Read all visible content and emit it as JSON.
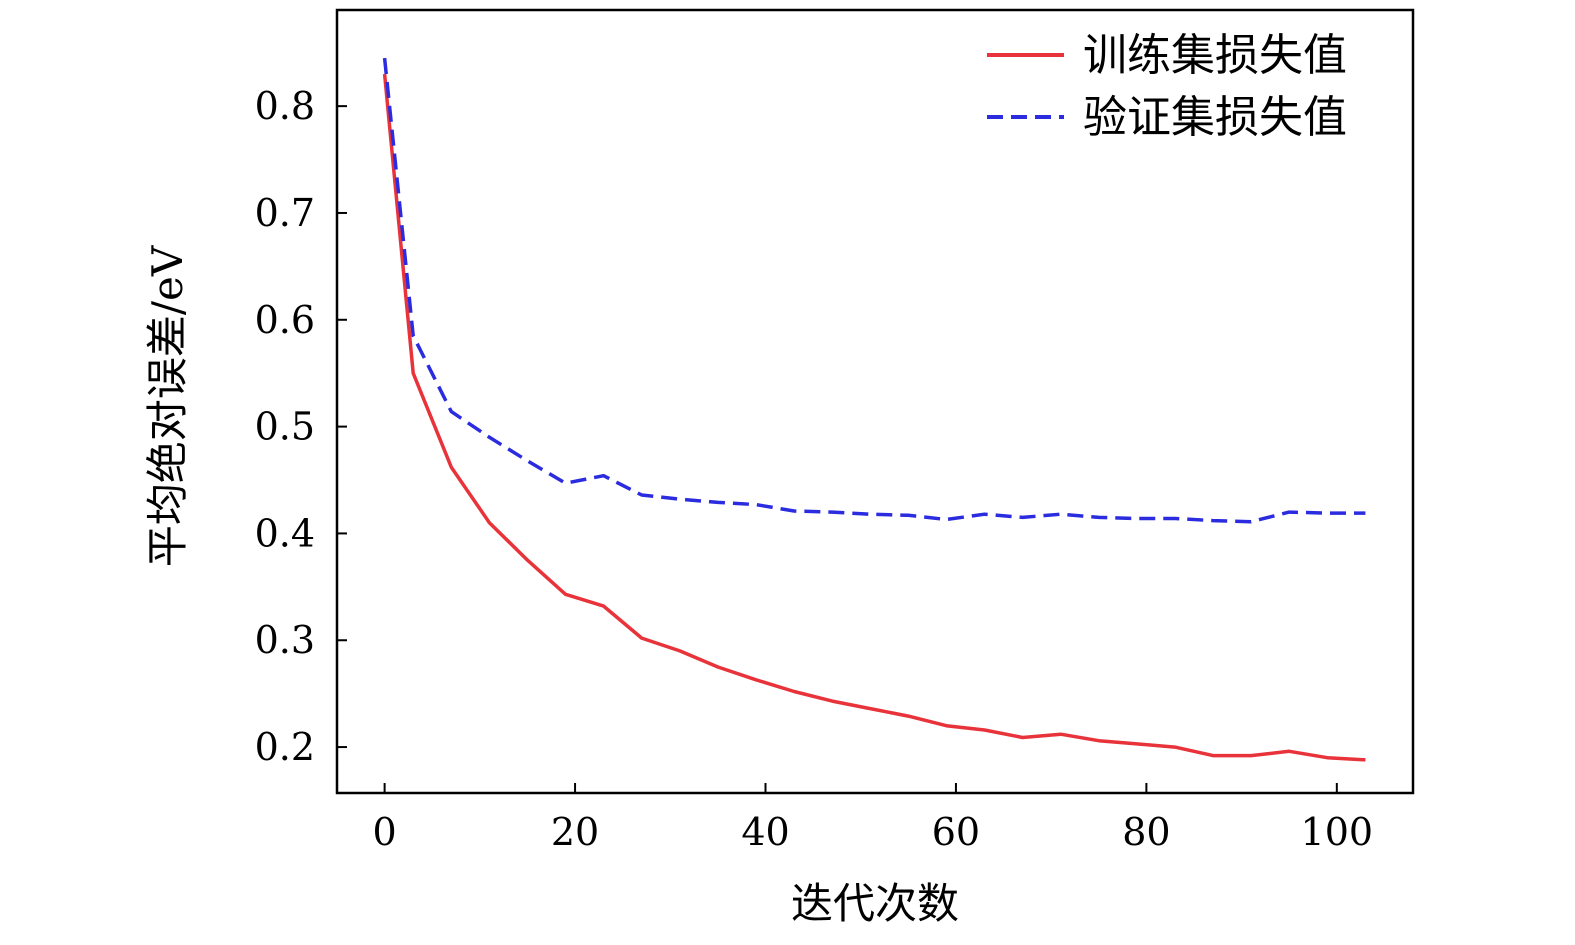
{
  "chart_data": {
    "type": "line",
    "title": "",
    "xlabel": "迭代次数",
    "ylabel": "平均绝对误差/eV",
    "xlim": [
      -5,
      108
    ],
    "ylim": [
      0.157,
      0.89
    ],
    "xticks": [
      0,
      20,
      40,
      60,
      80,
      100
    ],
    "xtick_labels": [
      "0",
      "20",
      "40",
      "60",
      "80",
      "100"
    ],
    "yticks": [
      0.2,
      0.3,
      0.4,
      0.5,
      0.6,
      0.7,
      0.8
    ],
    "ytick_labels": [
      "0.2",
      "0.3",
      "0.4",
      "0.5",
      "0.6",
      "0.7",
      "0.8"
    ],
    "grid": false,
    "legend_position": "top-right",
    "x": [
      0,
      3,
      7,
      11,
      15,
      19,
      23,
      27,
      31,
      35,
      39,
      43,
      47,
      51,
      55,
      59,
      63,
      67,
      71,
      75,
      79,
      83,
      87,
      91,
      95,
      99,
      103
    ],
    "series": [
      {
        "name": "训练集损失值",
        "color": "#e8333a",
        "style": "solid",
        "values": [
          0.83,
          0.55,
          0.462,
          0.41,
          0.375,
          0.343,
          0.332,
          0.302,
          0.29,
          0.275,
          0.263,
          0.252,
          0.243,
          0.236,
          0.229,
          0.22,
          0.216,
          0.209,
          0.212,
          0.206,
          0.203,
          0.2,
          0.192,
          0.192,
          0.196,
          0.19,
          0.188
        ]
      },
      {
        "name": "验证集损失值",
        "color": "#2b2be0",
        "style": "dashed",
        "values": [
          0.845,
          0.585,
          0.514,
          0.49,
          0.468,
          0.447,
          0.454,
          0.436,
          0.432,
          0.429,
          0.427,
          0.421,
          0.42,
          0.418,
          0.417,
          0.413,
          0.418,
          0.415,
          0.418,
          0.415,
          0.414,
          0.414,
          0.412,
          0.411,
          0.42,
          0.419,
          0.419
        ]
      }
    ]
  }
}
